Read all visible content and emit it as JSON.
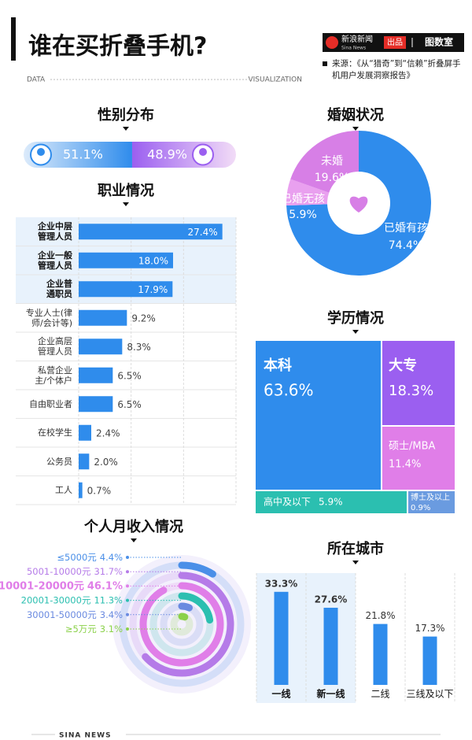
{
  "header": {
    "title": "谁在买折叠手机?",
    "left_tag": "DATA",
    "right_tag": "VISUALIZATION",
    "brand": "新浪新闻",
    "brand_en": "Sina News",
    "badge": "出品",
    "studio": "图数室",
    "source": "来源：《从“猎奇”到“信赖”折叠屏手机用户发展洞察报告》"
  },
  "footer": {
    "text": "SINA NEWS"
  },
  "chart_data": [
    {
      "type": "split",
      "title": "性别分布",
      "values": [
        51.1,
        48.9
      ],
      "value_labels": [
        "51.1%",
        "48.9%"
      ],
      "colors": [
        "#2f8cec",
        "#9b5ff0"
      ]
    },
    {
      "type": "pie",
      "title": "婚姻状况",
      "categories": [
        "已婚有孩",
        "已婚无孩",
        "未婚"
      ],
      "values": [
        74.4,
        5.9,
        19.6
      ],
      "value_labels": [
        "74.4%",
        "5.9%",
        "19.6%"
      ],
      "colors": [
        "#2f8cec",
        "#e9a0ef",
        "#d77fe6"
      ]
    },
    {
      "type": "bar",
      "orientation": "horizontal",
      "title": "职业情况",
      "categories": [
        "企业中层\n管理人员",
        "企业一般\n管理人员",
        "企业普\n通职员",
        "专业人士(律\n师/会计等)",
        "企业高层\n管理人员",
        "私营企业\n主/个体户",
        "自由职业者",
        "在校学生",
        "公务员",
        "工人"
      ],
      "values": [
        27.4,
        18.0,
        17.9,
        9.2,
        8.3,
        6.5,
        6.5,
        2.4,
        2.0,
        0.7
      ],
      "value_labels": [
        "27.4%",
        "18.0%",
        "17.9%",
        "9.2%",
        "8.3%",
        "6.5%",
        "6.5%",
        "2.4%",
        "2.0%",
        "0.7%"
      ],
      "highlight": [
        0,
        1,
        2
      ],
      "color": "#2f8cec",
      "xlim": [
        0,
        30
      ],
      "xticks": [
        0,
        10,
        20,
        30
      ],
      "grid": true
    },
    {
      "type": "treemap",
      "title": "学历情况",
      "categories": [
        "本科",
        "大专",
        "硕士/MBA",
        "高中及以下",
        "博士及以上"
      ],
      "values": [
        63.6,
        18.3,
        11.4,
        5.9,
        0.9
      ],
      "value_labels": [
        "63.6%",
        "18.3%",
        "11.4%",
        "5.9%",
        "0.9%"
      ],
      "colors": [
        "#2f8cec",
        "#9b5ff0",
        "#e07ee8",
        "#2bbfb0",
        "#6a9be0"
      ]
    },
    {
      "type": "radial",
      "title": "个人月收入情况",
      "categories": [
        "≤5000元",
        "5001-10000元",
        "10001-20000元",
        "20001-30000元",
        "30001-50000元",
        "≥5万元"
      ],
      "values": [
        4.4,
        31.7,
        46.1,
        11.3,
        3.4,
        3.1
      ],
      "value_labels": [
        "4.4%",
        "31.7%",
        "46.1%",
        "11.3%",
        "3.4%",
        "3.1%"
      ],
      "colors": [
        "#4a8fe8",
        "#b57be8",
        "#e07ee8",
        "#2bbfb0",
        "#6a8ae0",
        "#8bd14a"
      ],
      "lim": [
        0,
        50
      ]
    },
    {
      "type": "bar",
      "orientation": "vertical",
      "title": "所在城市",
      "categories": [
        "一线",
        "新一线",
        "二线",
        "三线及以下"
      ],
      "values": [
        33.3,
        27.6,
        21.8,
        17.3
      ],
      "value_labels": [
        "33.3%",
        "27.6%",
        "21.8%",
        "17.3%"
      ],
      "highlight": [
        0,
        1
      ],
      "color": "#2f8cec",
      "ylim": [
        0,
        40
      ]
    }
  ]
}
